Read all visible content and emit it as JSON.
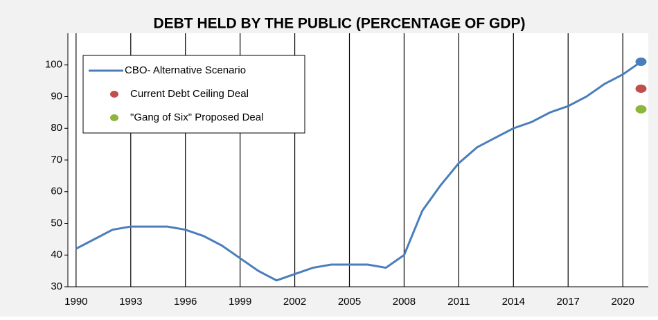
{
  "chart_data": {
    "type": "line",
    "title": "DEBT HELD BY THE PUBLIC (PERCENTAGE OF GDP)",
    "x": [
      1990,
      1991,
      1992,
      1993,
      1994,
      1995,
      1996,
      1997,
      1998,
      1999,
      2000,
      2001,
      2002,
      2003,
      2004,
      2005,
      2006,
      2007,
      2008,
      2009,
      2010,
      2011,
      2012,
      2013,
      2014,
      2015,
      2016,
      2017,
      2018,
      2019,
      2020,
      2021
    ],
    "series": [
      {
        "name": "CBO- Alternative Scenario",
        "color": "#4a7ebb",
        "values": [
          42,
          45,
          48,
          49,
          49,
          49,
          48,
          46,
          43,
          39,
          35,
          32,
          34,
          36,
          37,
          37,
          37,
          36,
          40,
          54,
          62,
          69,
          74,
          77,
          80,
          82,
          85,
          87,
          90,
          94,
          97,
          101
        ]
      },
      {
        "name": "Current Debt Ceiling Deal",
        "color": "#c0504d",
        "x": [
          2021
        ],
        "values": [
          92.5
        ]
      },
      {
        "name": "\"Gang of Six\" Proposed Deal",
        "color": "#8cb63c",
        "x": [
          2021
        ],
        "values": [
          86
        ]
      }
    ],
    "xlim": [
      1989.55,
      2021.4
    ],
    "xticks": [
      1990,
      1993,
      1996,
      1999,
      2002,
      2005,
      2008,
      2011,
      2014,
      2017,
      2020
    ],
    "ylim": [
      30,
      110
    ],
    "yticks": [
      30,
      40,
      50,
      60,
      70,
      80,
      90,
      100
    ],
    "grid": "x",
    "legend": "top-left"
  }
}
